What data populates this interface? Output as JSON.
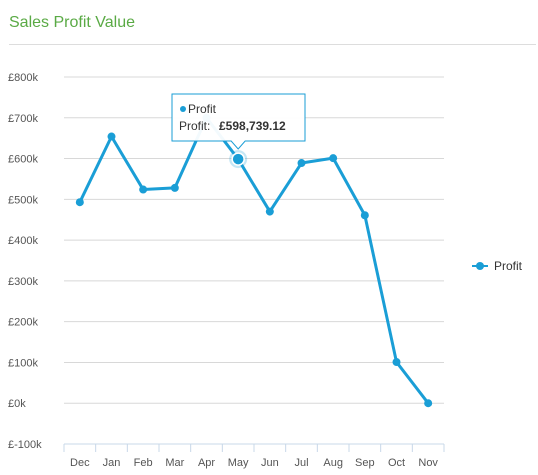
{
  "header": {
    "title": "Sales Profit Value"
  },
  "chart_data": {
    "type": "line",
    "title": "",
    "xlabel": "",
    "ylabel": "",
    "categories": [
      "Dec",
      "Jan",
      "Feb",
      "Mar",
      "Apr",
      "May",
      "Jun",
      "Jul",
      "Aug",
      "Sep",
      "Oct",
      "Nov"
    ],
    "series": [
      {
        "name": "Profit",
        "color": "#1a9ed6",
        "values": [
          493000,
          654000,
          524000,
          528000,
          700000,
          598739.12,
          470000,
          589000,
          601000,
          461000,
          101000,
          0
        ]
      }
    ],
    "ylim": [
      -100000,
      800000
    ],
    "yticks": [
      -100000,
      0,
      100000,
      200000,
      300000,
      400000,
      500000,
      600000,
      700000,
      800000
    ],
    "ytick_labels": [
      "£-100k",
      "£0k",
      "£100k",
      "£200k",
      "£300k",
      "£400k",
      "£500k",
      "£600k",
      "£700k",
      "£800k"
    ],
    "grid": true,
    "legend_position": "right",
    "tooltip": {
      "category": "May",
      "series": "Profit",
      "label": "Profit:",
      "value": "£598,739.12"
    }
  }
}
